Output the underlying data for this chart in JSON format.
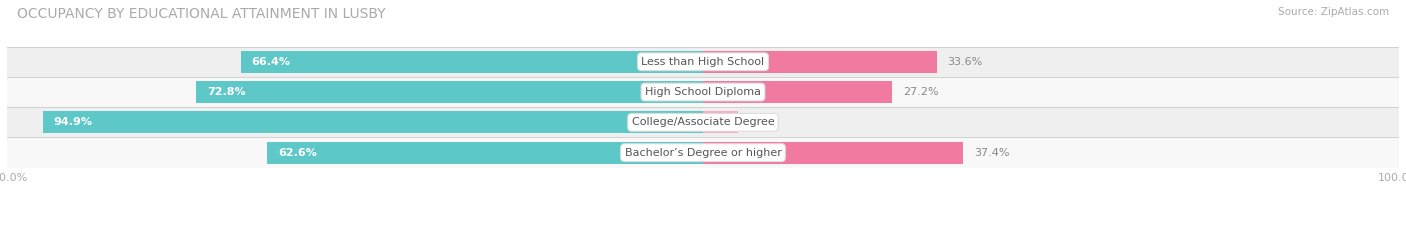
{
  "title": "OCCUPANCY BY EDUCATIONAL ATTAINMENT IN LUSBY",
  "source": "Source: ZipAtlas.com",
  "categories": [
    "Less than High School",
    "High School Diploma",
    "College/Associate Degree",
    "Bachelor’s Degree or higher"
  ],
  "owner_values": [
    66.4,
    72.8,
    94.9,
    62.6
  ],
  "renter_values": [
    33.6,
    27.2,
    5.1,
    37.4
  ],
  "owner_color": "#5ec8c8",
  "renter_color_strong": "#f07aa0",
  "renter_color_weak": "#f5aec8",
  "renter_colors": [
    "#f07aa0",
    "#f07aa0",
    "#f5aec8",
    "#f07aa0"
  ],
  "row_bg_colors": [
    "#efefef",
    "#f8f8f8",
    "#efefef",
    "#f8f8f8"
  ],
  "title_fontsize": 10,
  "label_fontsize": 8,
  "bar_value_fontsize": 8,
  "legend_fontsize": 8.5,
  "axis_label_fontsize": 8,
  "figsize": [
    14.06,
    2.33
  ],
  "dpi": 100
}
